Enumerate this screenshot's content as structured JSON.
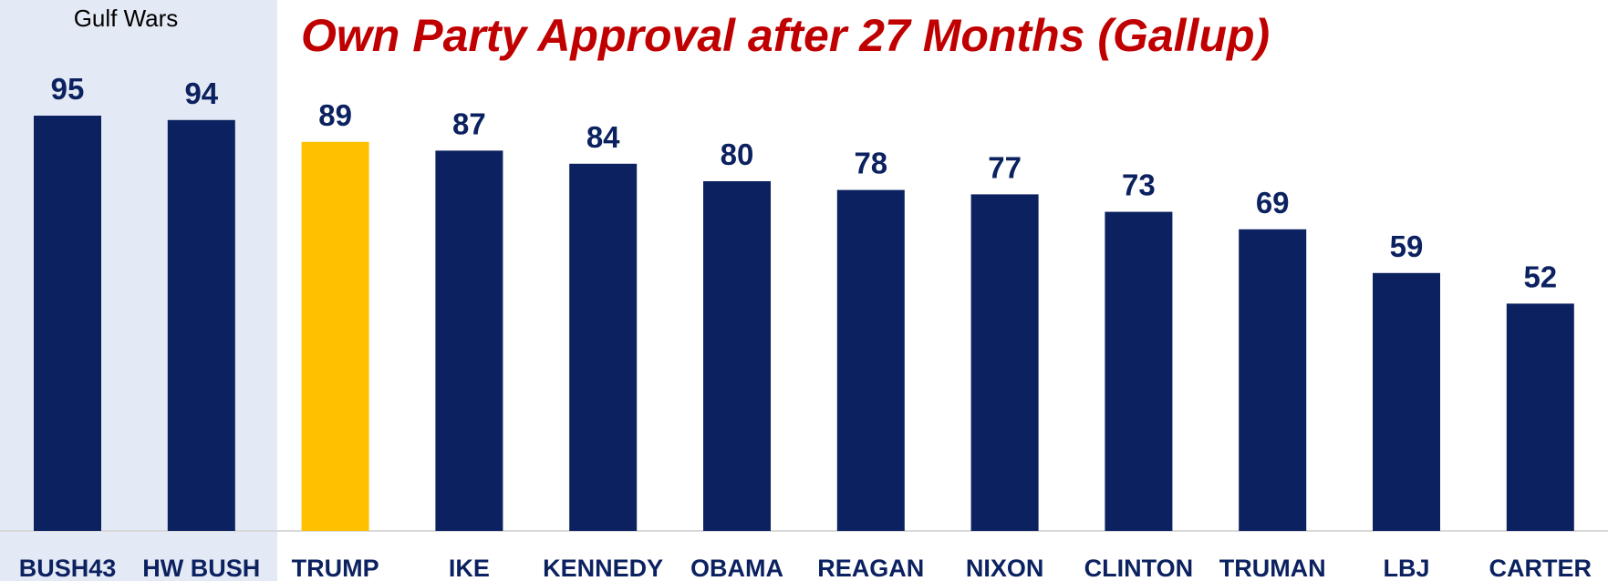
{
  "chart_data": {
    "type": "bar",
    "title": "Own Party Approval after 27 Months (Gallup)",
    "categories": [
      "BUSH43",
      "HW BUSH",
      "TRUMP",
      "IKE",
      "KENNEDY",
      "OBAMA",
      "REAGAN",
      "NIXON",
      "CLINTON",
      "TRUMAN",
      "LBJ",
      "CARTER"
    ],
    "values": [
      95,
      94,
      89,
      87,
      84,
      80,
      78,
      77,
      73,
      69,
      59,
      52
    ],
    "highlight_category": "TRUMP",
    "highlight_group": {
      "label": "Gulf Wars",
      "categories": [
        "BUSH43",
        "HW BUSH"
      ]
    },
    "xlabel": "",
    "ylabel": "",
    "grid": false,
    "legend": "none"
  },
  "colors": {
    "bar": "#0c2260",
    "highlight_bar": "#ffc000",
    "title": "#c00000",
    "value_label": "#0c2260",
    "tick_label": "#0c2260",
    "band": "#e4eaf5",
    "baseline": "#d9d9d9",
    "band_text": "#000000"
  }
}
